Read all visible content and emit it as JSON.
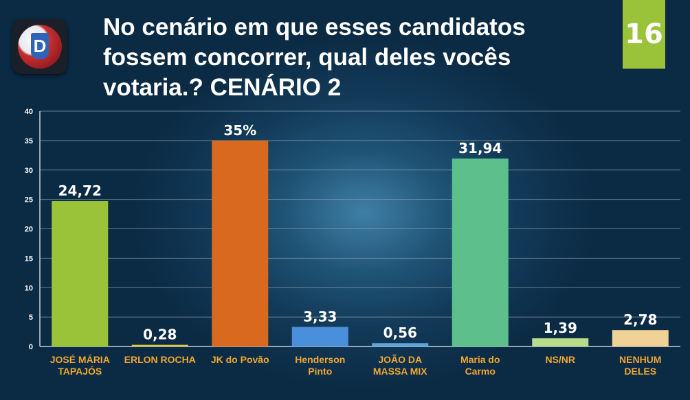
{
  "header": {
    "title": "No cenário em que esses candidatos fossem concorrer, qual deles vocês votaria.? CENÁRIO 2",
    "page_number": "16",
    "badge_color": "#9bc33a"
  },
  "logo": {
    "icon": "news-logo-icon"
  },
  "chart_data": {
    "type": "bar",
    "title": "No cenário em que esses candidatos fossem concorrer, qual deles vocês votaria.? CENÁRIO 2",
    "categories": [
      [
        "JOSÉ MÁRIA",
        "TAPAJÓS"
      ],
      [
        "ERLON ROCHA"
      ],
      [
        "JK do Povão"
      ],
      [
        "Henderson",
        "Pinto"
      ],
      [
        "JOÃO DA",
        "MASSA MIX"
      ],
      [
        "Maria do",
        "Carmo"
      ],
      [
        "NS/NR"
      ],
      [
        "NENHUM",
        "DELES"
      ]
    ],
    "values": [
      24.72,
      0.28,
      35,
      3.33,
      0.56,
      31.94,
      1.39,
      2.78
    ],
    "data_labels": [
      "24,72",
      "0,28",
      "35%",
      "3,33",
      "0,56",
      "31,94",
      "1,39",
      "2,78"
    ],
    "colors": [
      "#9bc33a",
      "#e6c642",
      "#d9691f",
      "#4a8fdc",
      "#5ba6d9",
      "#5cbf8c",
      "#b8dc8a",
      "#f0d296"
    ],
    "ylim": [
      0,
      40
    ],
    "yticks": [
      0,
      5,
      10,
      15,
      20,
      25,
      30,
      35,
      40
    ],
    "grid": true,
    "xlabel": "",
    "ylabel": ""
  }
}
